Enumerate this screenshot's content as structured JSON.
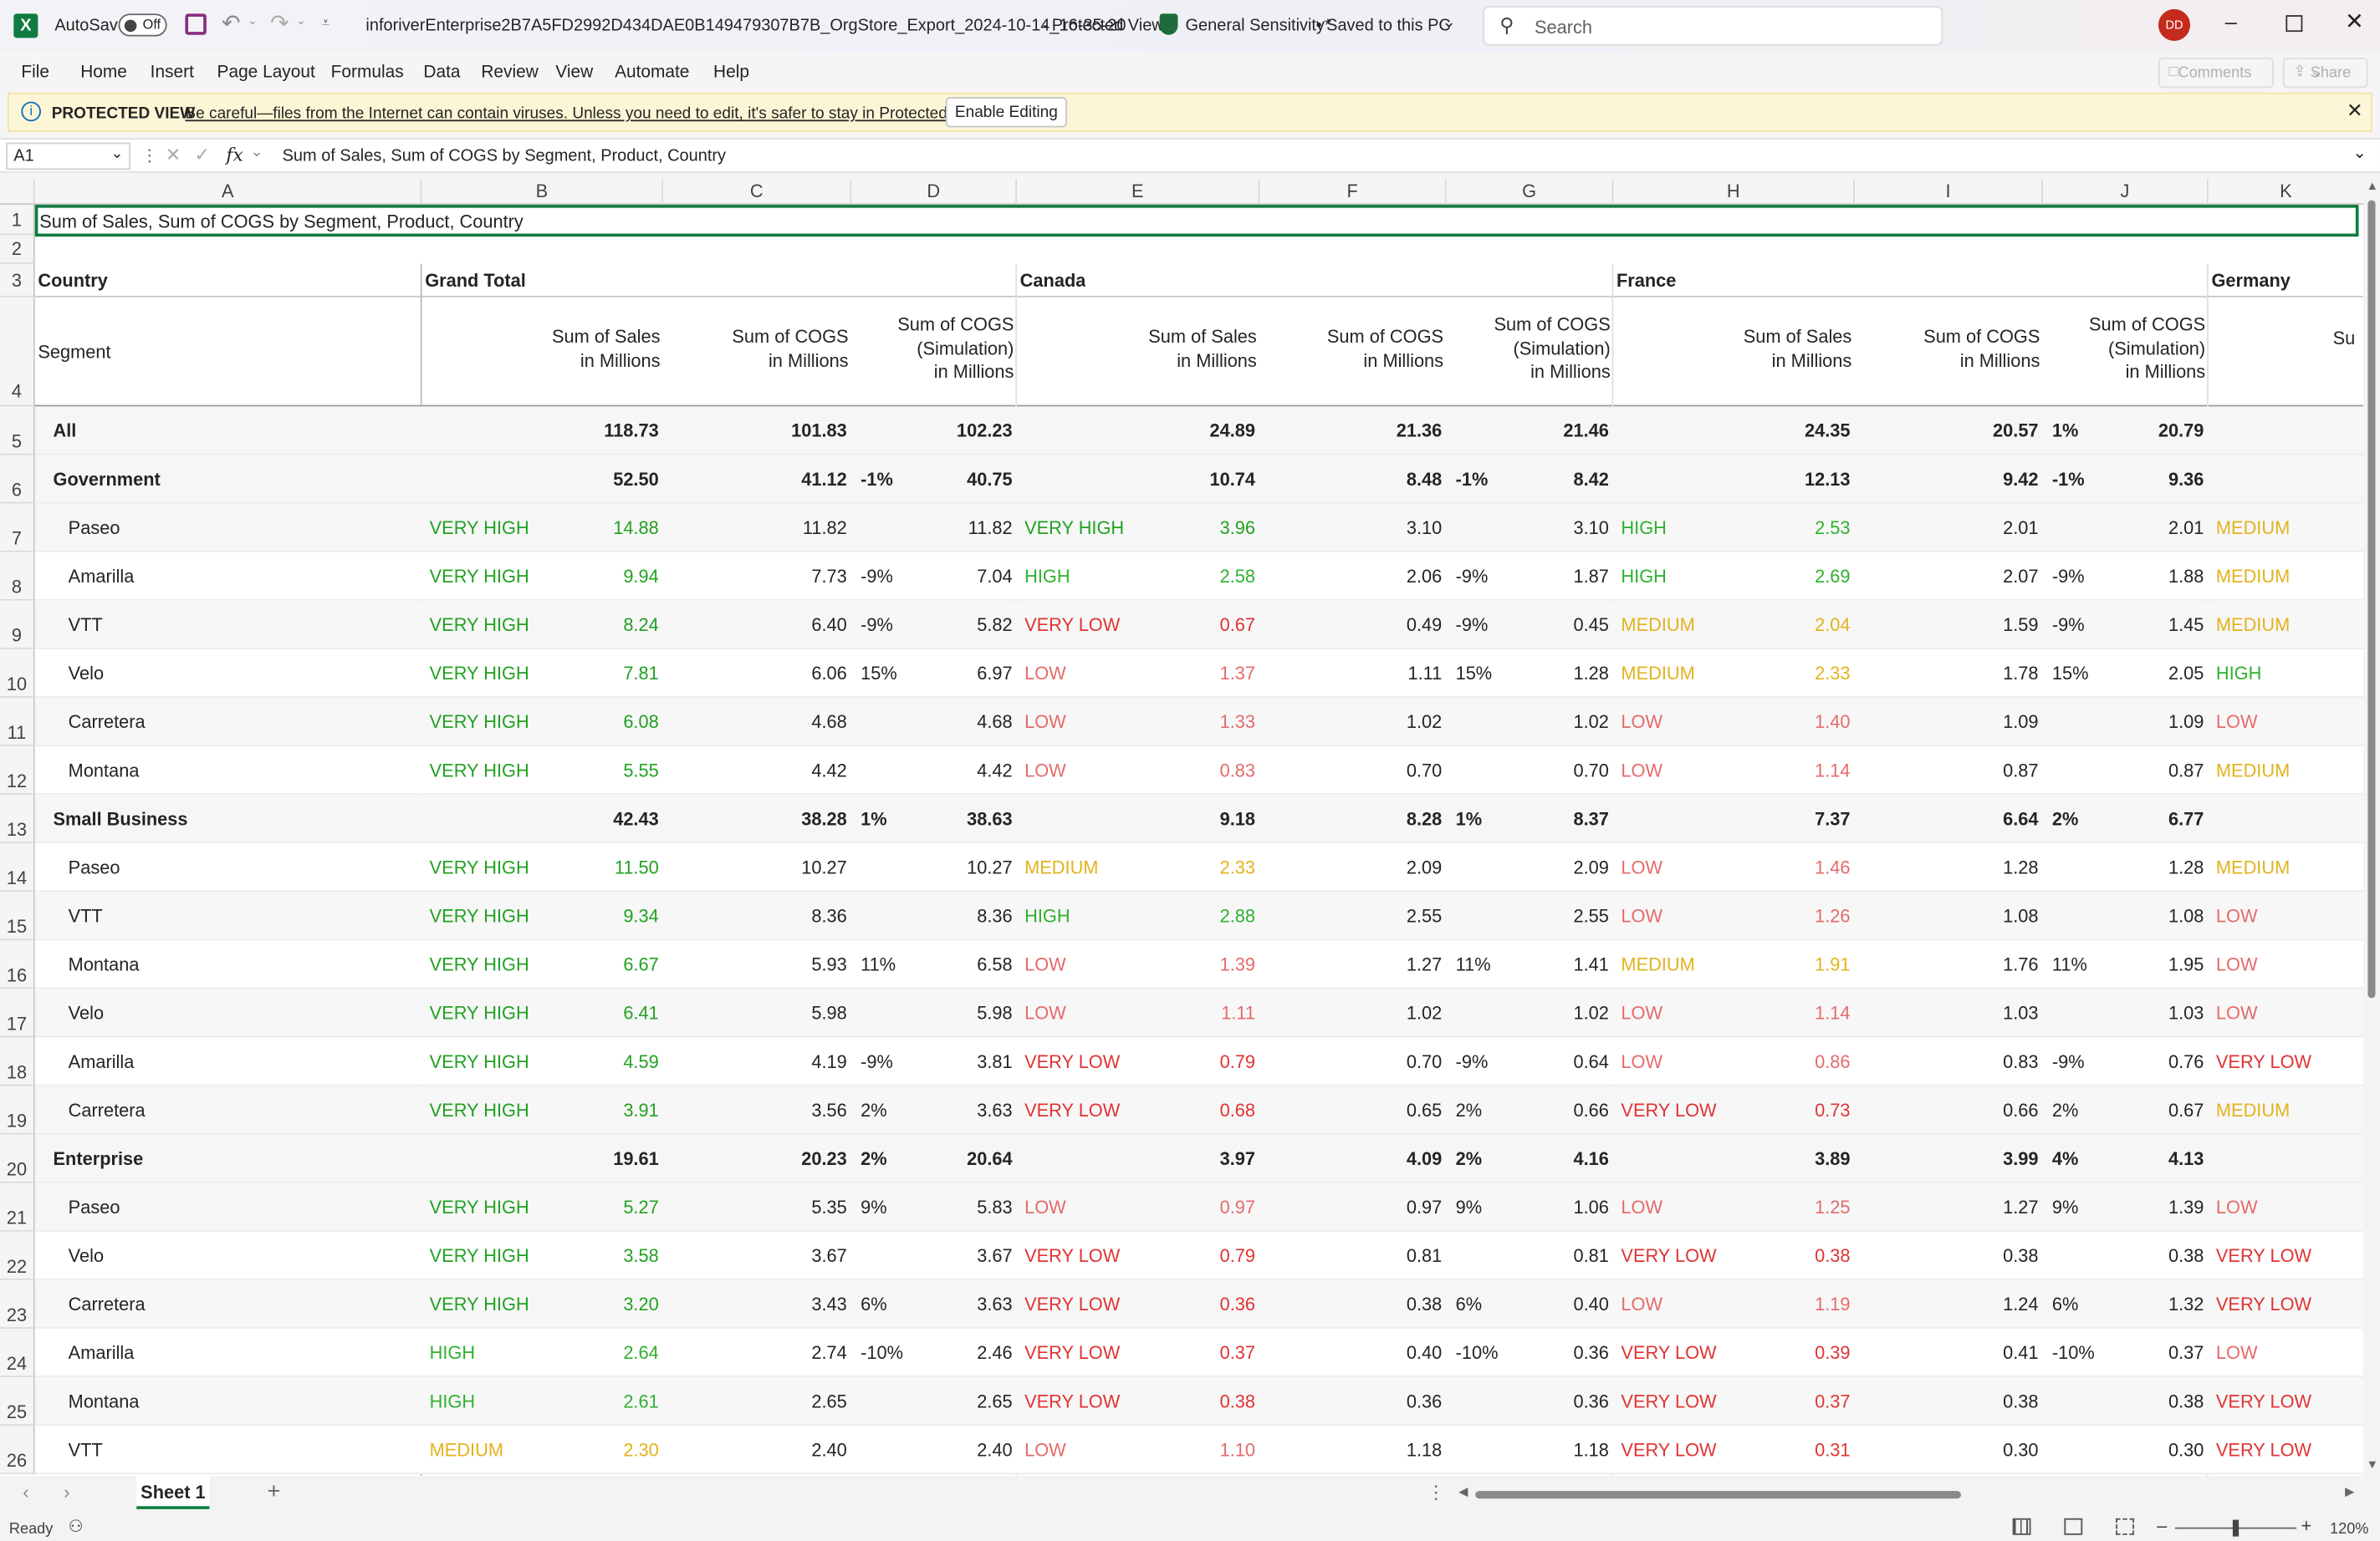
{
  "window": {
    "app": "Excel",
    "autosave_label": "AutoSave",
    "autosave_state": "Off",
    "title": "inforiverEnterprise2B7A5FD2992D434DAE0B149479307B7B_OrgStore_Export_2024-10-14_16-35-20",
    "view_mode": "Protected View",
    "sensitivity": "General Sensitivity*",
    "saved": "• Saved to this PC",
    "search_placeholder": "Search",
    "user_initials": "DD"
  },
  "menu": {
    "items": [
      "File",
      "Home",
      "Insert",
      "Page Layout",
      "Formulas",
      "Data",
      "Review",
      "View",
      "Automate",
      "Help"
    ],
    "comments": "Comments",
    "share": "Share"
  },
  "protected": {
    "label": "PROTECTED VIEW",
    "message": "Be careful—files from the Internet can contain viruses. Unless you need to edit, it's safer to stay in Protected View.",
    "button": "Enable Editing"
  },
  "formula": {
    "name_box": "A1",
    "fx": "fx",
    "content": "Sum of  Sales, Sum of COGS by Segment, Product, Country"
  },
  "columns": [
    "A",
    "B",
    "C",
    "D",
    "E",
    "F",
    "G",
    "H",
    "I",
    "J",
    "K"
  ],
  "sheet": {
    "title": "Sum of  Sales, Sum of COGS by Segment, Product, Country",
    "country_label": "Country",
    "segment_label": "Segment",
    "groups": [
      "Grand Total",
      "Canada",
      "France",
      "Germany"
    ],
    "hdr_sales": [
      "Sum of  Sales",
      "in Millions"
    ],
    "hdr_cogs": [
      "Sum of COGS",
      "in Millions"
    ],
    "hdr_sim": [
      "Sum of COGS",
      "(Simulation)",
      "in Millions"
    ],
    "hdr_partial": "Su",
    "rows": [
      {
        "n": "5",
        "name": "All",
        "lvl": 0,
        "b": "118.73",
        "c": "101.83",
        "d": "",
        "d2": "102.23",
        "e": "24.89",
        "f": "21.36",
        "g": "",
        "g2": "21.46",
        "h": "24.35",
        "i": "20.57",
        "j": "1%",
        "j2": "20.79"
      },
      {
        "n": "6",
        "name": "Government",
        "lvl": 1,
        "b": "52.50",
        "c": "41.12",
        "d": "-1%",
        "d2": "40.75",
        "e": "10.74",
        "f": "8.48",
        "g": "-1%",
        "g2": "8.42",
        "h": "12.13",
        "i": "9.42",
        "j": "-1%",
        "j2": "9.36"
      },
      {
        "n": "7",
        "name": "Paseo",
        "lvl": 2,
        "bl": "VERY HIGH",
        "bc": "vh",
        "b": "14.88",
        "c": "11.82",
        "d": "",
        "d2": "11.82",
        "el": "VERY HIGH",
        "ec": "vh",
        "e": "3.96",
        "f": "3.10",
        "g": "",
        "g2": "3.10",
        "hl": "HIGH",
        "hc": "hi",
        "h": "2.53",
        "i": "2.01",
        "j": "",
        "j2": "2.01",
        "kl": "MEDIUM",
        "kc": "md"
      },
      {
        "n": "8",
        "name": "Amarilla",
        "lvl": 2,
        "bl": "VERY HIGH",
        "bc": "vh",
        "b": "9.94",
        "c": "7.73",
        "d": "-9%",
        "d2": "7.04",
        "el": "HIGH",
        "ec": "hi",
        "e": "2.58",
        "f": "2.06",
        "g": "-9%",
        "g2": "1.87",
        "hl": "HIGH",
        "hc": "hi",
        "h": "2.69",
        "i": "2.07",
        "j": "-9%",
        "j2": "1.88",
        "kl": "MEDIUM",
        "kc": "md"
      },
      {
        "n": "9",
        "name": "VTT",
        "lvl": 2,
        "bl": "VERY HIGH",
        "bc": "vh",
        "b": "8.24",
        "c": "6.40",
        "d": "-9%",
        "d2": "5.82",
        "el": "VERY LOW",
        "ec": "vl",
        "e": "0.67",
        "f": "0.49",
        "g": "-9%",
        "g2": "0.45",
        "hl": "MEDIUM",
        "hc": "md",
        "h": "2.04",
        "i": "1.59",
        "j": "-9%",
        "j2": "1.45",
        "kl": "MEDIUM",
        "kc": "md"
      },
      {
        "n": "10",
        "name": "Velo",
        "lvl": 2,
        "bl": "VERY HIGH",
        "bc": "vh",
        "b": "7.81",
        "c": "6.06",
        "d": "15%",
        "d2": "6.97",
        "el": "LOW",
        "ec": "lo",
        "e": "1.37",
        "f": "1.11",
        "g": "15%",
        "g2": "1.28",
        "hl": "MEDIUM",
        "hc": "md",
        "h": "2.33",
        "i": "1.78",
        "j": "15%",
        "j2": "2.05",
        "kl": "HIGH",
        "kc": "hi"
      },
      {
        "n": "11",
        "name": "Carretera",
        "lvl": 2,
        "bl": "VERY HIGH",
        "bc": "vh",
        "b": "6.08",
        "c": "4.68",
        "d": "",
        "d2": "4.68",
        "el": "LOW",
        "ec": "lo",
        "e": "1.33",
        "f": "1.02",
        "g": "",
        "g2": "1.02",
        "hl": "LOW",
        "hc": "lo",
        "h": "1.40",
        "i": "1.09",
        "j": "",
        "j2": "1.09",
        "kl": "LOW",
        "kc": "lo"
      },
      {
        "n": "12",
        "name": "Montana",
        "lvl": 2,
        "bl": "VERY HIGH",
        "bc": "vh",
        "b": "5.55",
        "c": "4.42",
        "d": "",
        "d2": "4.42",
        "el": "LOW",
        "ec": "lo",
        "e": "0.83",
        "f": "0.70",
        "g": "",
        "g2": "0.70",
        "hl": "LOW",
        "hc": "lo",
        "h": "1.14",
        "i": "0.87",
        "j": "",
        "j2": "0.87",
        "kl": "MEDIUM",
        "kc": "md"
      },
      {
        "n": "13",
        "name": "Small Business",
        "lvl": 1,
        "b": "42.43",
        "c": "38.28",
        "d": "1%",
        "d2": "38.63",
        "e": "9.18",
        "f": "8.28",
        "g": "1%",
        "g2": "8.37",
        "h": "7.37",
        "i": "6.64",
        "j": "2%",
        "j2": "6.77"
      },
      {
        "n": "14",
        "name": "Paseo",
        "lvl": 2,
        "bl": "VERY HIGH",
        "bc": "vh",
        "b": "11.50",
        "c": "10.27",
        "d": "",
        "d2": "10.27",
        "el": "MEDIUM",
        "ec": "md",
        "e": "2.33",
        "f": "2.09",
        "g": "",
        "g2": "2.09",
        "hl": "LOW",
        "hc": "lo",
        "h": "1.46",
        "i": "1.28",
        "j": "",
        "j2": "1.28",
        "kl": "MEDIUM",
        "kc": "md"
      },
      {
        "n": "15",
        "name": "VTT",
        "lvl": 2,
        "bl": "VERY HIGH",
        "bc": "vh",
        "b": "9.34",
        "c": "8.36",
        "d": "",
        "d2": "8.36",
        "el": "HIGH",
        "ec": "hi",
        "e": "2.88",
        "f": "2.55",
        "g": "",
        "g2": "2.55",
        "hl": "LOW",
        "hc": "lo",
        "h": "1.26",
        "i": "1.08",
        "j": "",
        "j2": "1.08",
        "kl": "LOW",
        "kc": "lo"
      },
      {
        "n": "16",
        "name": "Montana",
        "lvl": 2,
        "bl": "VERY HIGH",
        "bc": "vh",
        "b": "6.67",
        "c": "5.93",
        "d": "11%",
        "d2": "6.58",
        "el": "LOW",
        "ec": "lo",
        "e": "1.39",
        "f": "1.27",
        "g": "11%",
        "g2": "1.41",
        "hl": "MEDIUM",
        "hc": "md",
        "h": "1.91",
        "i": "1.76",
        "j": "11%",
        "j2": "1.95",
        "kl": "LOW",
        "kc": "lo"
      },
      {
        "n": "17",
        "name": "Velo",
        "lvl": 2,
        "bl": "VERY HIGH",
        "bc": "vh",
        "b": "6.41",
        "c": "5.98",
        "d": "",
        "d2": "5.98",
        "el": "LOW",
        "ec": "lo",
        "e": "1.11",
        "f": "1.02",
        "g": "",
        "g2": "1.02",
        "hl": "LOW",
        "hc": "lo",
        "h": "1.14",
        "i": "1.03",
        "j": "",
        "j2": "1.03",
        "kl": "LOW",
        "kc": "lo"
      },
      {
        "n": "18",
        "name": "Amarilla",
        "lvl": 2,
        "bl": "VERY HIGH",
        "bc": "vh",
        "b": "4.59",
        "c": "4.19",
        "d": "-9%",
        "d2": "3.81",
        "el": "VERY LOW",
        "ec": "vl",
        "e": "0.79",
        "f": "0.70",
        "g": "-9%",
        "g2": "0.64",
        "hl": "LOW",
        "hc": "lo",
        "h": "0.86",
        "i": "0.83",
        "j": "-9%",
        "j2": "0.76",
        "kl": "VERY LOW",
        "kc": "vl"
      },
      {
        "n": "19",
        "name": "Carretera",
        "lvl": 2,
        "bl": "VERY HIGH",
        "bc": "vh",
        "b": "3.91",
        "c": "3.56",
        "d": "2%",
        "d2": "3.63",
        "el": "VERY LOW",
        "ec": "vl",
        "e": "0.68",
        "f": "0.65",
        "g": "2%",
        "g2": "0.66",
        "hl": "VERY LOW",
        "hc": "vl",
        "h": "0.73",
        "i": "0.66",
        "j": "2%",
        "j2": "0.67",
        "kl": "MEDIUM",
        "kc": "md"
      },
      {
        "n": "20",
        "name": "Enterprise",
        "lvl": 1,
        "b": "19.61",
        "c": "20.23",
        "d": "2%",
        "d2": "20.64",
        "e": "3.97",
        "f": "4.09",
        "g": "2%",
        "g2": "4.16",
        "h": "3.89",
        "i": "3.99",
        "j": "4%",
        "j2": "4.13"
      },
      {
        "n": "21",
        "name": "Paseo",
        "lvl": 2,
        "bl": "VERY HIGH",
        "bc": "vh",
        "b": "5.27",
        "c": "5.35",
        "d": "9%",
        "d2": "5.83",
        "el": "LOW",
        "ec": "lo",
        "e": "0.97",
        "f": "0.97",
        "g": "9%",
        "g2": "1.06",
        "hl": "LOW",
        "hc": "lo",
        "h": "1.25",
        "i": "1.27",
        "j": "9%",
        "j2": "1.39",
        "kl": "LOW",
        "kc": "lo"
      },
      {
        "n": "22",
        "name": "Velo",
        "lvl": 2,
        "bl": "VERY HIGH",
        "bc": "vh",
        "b": "3.58",
        "c": "3.67",
        "d": "",
        "d2": "3.67",
        "el": "VERY LOW",
        "ec": "vl",
        "e": "0.79",
        "f": "0.81",
        "g": "",
        "g2": "0.81",
        "hl": "VERY LOW",
        "hc": "vl",
        "h": "0.38",
        "i": "0.38",
        "j": "",
        "j2": "0.38",
        "kl": "VERY LOW",
        "kc": "vl"
      },
      {
        "n": "23",
        "name": "Carretera",
        "lvl": 2,
        "bl": "VERY HIGH",
        "bc": "vh",
        "b": "3.20",
        "c": "3.43",
        "d": "6%",
        "d2": "3.63",
        "el": "VERY LOW",
        "ec": "vl",
        "e": "0.36",
        "f": "0.38",
        "g": "6%",
        "g2": "0.40",
        "hl": "LOW",
        "hc": "lo",
        "h": "1.19",
        "i": "1.24",
        "j": "6%",
        "j2": "1.32",
        "kl": "VERY LOW",
        "kc": "vl"
      },
      {
        "n": "24",
        "name": "Amarilla",
        "lvl": 2,
        "bl": "HIGH",
        "bc": "hi",
        "b": "2.64",
        "c": "2.74",
        "d": "-10%",
        "d2": "2.46",
        "el": "VERY LOW",
        "ec": "vl",
        "e": "0.37",
        "f": "0.40",
        "g": "-10%",
        "g2": "0.36",
        "hl": "VERY LOW",
        "hc": "vl",
        "h": "0.39",
        "i": "0.41",
        "j": "-10%",
        "j2": "0.37",
        "kl": "LOW",
        "kc": "lo"
      },
      {
        "n": "25",
        "name": "Montana",
        "lvl": 2,
        "bl": "HIGH",
        "bc": "hi",
        "b": "2.61",
        "c": "2.65",
        "d": "",
        "d2": "2.65",
        "el": "VERY LOW",
        "ec": "vl",
        "e": "0.38",
        "f": "0.36",
        "g": "",
        "g2": "0.36",
        "hl": "VERY LOW",
        "hc": "vl",
        "h": "0.37",
        "i": "0.38",
        "j": "",
        "j2": "0.38",
        "kl": "VERY LOW",
        "kc": "vl"
      },
      {
        "n": "26",
        "name": "VTT",
        "lvl": 2,
        "bl": "MEDIUM",
        "bc": "md",
        "b": "2.30",
        "c": "2.40",
        "d": "",
        "d2": "2.40",
        "el": "LOW",
        "ec": "lo",
        "e": "1.10",
        "f": "1.18",
        "g": "",
        "g2": "1.18",
        "hl": "VERY LOW",
        "hc": "vl",
        "h": "0.31",
        "i": "0.30",
        "j": "",
        "j2": "0.30",
        "kl": "VERY LOW",
        "kc": "vl"
      }
    ]
  },
  "sheet_tab": "Sheet 1",
  "status": {
    "ready": "Ready",
    "zoom": "120%"
  },
  "colors": {
    "very_high": "#21a121",
    "high": "#2fb02f",
    "medium": "#e3b21c",
    "low": "#e56a6a",
    "very_low": "#e03333",
    "selection": "#107c41"
  }
}
